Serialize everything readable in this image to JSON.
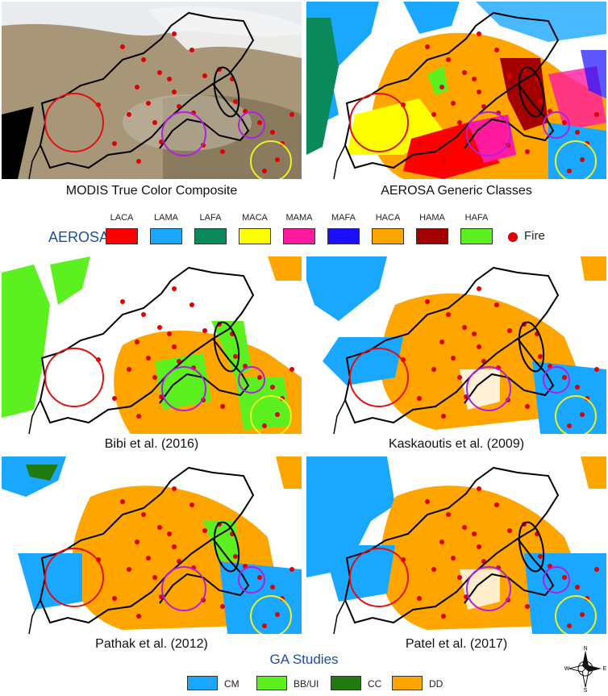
{
  "panels": [
    {
      "id": "modis",
      "caption": "MODIS True Color Composite"
    },
    {
      "id": "aerosa",
      "caption": "AEROSA Generic Classes"
    },
    {
      "id": "bibi",
      "caption": "Bibi et al. (2016)"
    },
    {
      "id": "kaskaoutis",
      "caption": "Kaskaoutis et al. (2009)"
    },
    {
      "id": "pathak",
      "caption": "Pathak et al. (2012)"
    },
    {
      "id": "patel",
      "caption": "Patel et al. (2017)"
    }
  ],
  "aerosa_legend": {
    "title": "AEROSA",
    "classes": [
      {
        "label": "LACA",
        "color": "#ff0000"
      },
      {
        "label": "LAMA",
        "color": "#1aa7ff"
      },
      {
        "label": "LAFA",
        "color": "#0a8a5a"
      },
      {
        "label": "MACA",
        "color": "#ffff00"
      },
      {
        "label": "MAMA",
        "color": "#ff1aa0"
      },
      {
        "label": "MAFA",
        "color": "#1a10ff"
      },
      {
        "label": "HACA",
        "color": "#ffa500"
      },
      {
        "label": "HAMA",
        "color": "#a30000"
      },
      {
        "label": "HAFA",
        "color": "#5cf020"
      }
    ],
    "fire_label": "Fire",
    "fire_color": "#e00000"
  },
  "ga_legend": {
    "title": "GA Studies",
    "classes": [
      {
        "label": "CM",
        "color": "#1aa7ff"
      },
      {
        "label": "BB/UI",
        "color": "#5cf020"
      },
      {
        "label": "CC",
        "color": "#1f7a10"
      },
      {
        "label": "DD",
        "color": "#ffa500"
      }
    ]
  },
  "compass": {
    "n": "N",
    "s": "S",
    "e": "E",
    "w": "W"
  }
}
